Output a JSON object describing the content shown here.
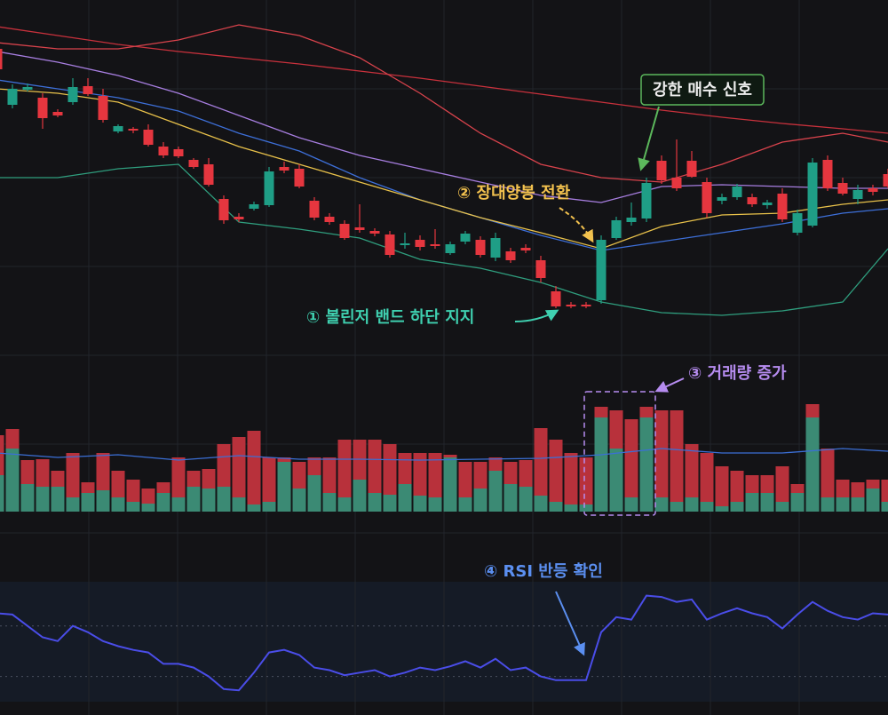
{
  "chart_data": [
    {
      "type": "candlestick",
      "xlim": [
        0,
        59
      ],
      "ylim": [
        20,
        400
      ],
      "up_color": "#1f9e86",
      "down_color": "#e5363f",
      "open": [
        345,
        282,
        299,
        290,
        274,
        285,
        303,
        292,
        252,
        255,
        254,
        235,
        232,
        220,
        215,
        176,
        156,
        165,
        169,
        212,
        210,
        174,
        156,
        148,
        144,
        140,
        136,
        124,
        130,
        125,
        115,
        128,
        130,
        110,
        117,
        121,
        107,
        72,
        57,
        57,
        62,
        132,
        150,
        154,
        219,
        200,
        219,
        195,
        174,
        178,
        178,
        169,
        182,
        138,
        146,
        220,
        194,
        176,
        188,
        204
      ],
      "high": [
        350,
        305,
        306,
        295,
        277,
        312,
        312,
        300,
        260,
        257,
        260,
        240,
        235,
        222,
        222,
        180,
        160,
        173,
        212,
        218,
        215,
        178,
        160,
        152,
        170,
        143,
        140,
        138,
        135,
        142,
        128,
        140,
        134,
        138,
        121,
        125,
        112,
        78,
        60,
        60,
        135,
        156,
        172,
        200,
        225,
        243,
        230,
        200,
        182,
        193,
        182,
        175,
        188,
        164,
        222,
        225,
        200,
        192,
        192,
        210
      ],
      "low": [
        320,
        278,
        297,
        255,
        268,
        282,
        292,
        262,
        250,
        250,
        235,
        222,
        222,
        210,
        190,
        148,
        150,
        163,
        167,
        205,
        188,
        152,
        147,
        130,
        138,
        134,
        110,
        120,
        118,
        120,
        113,
        125,
        110,
        106,
        104,
        115,
        82,
        53,
        53,
        53,
        58,
        130,
        146,
        150,
        193,
        185,
        200,
        155,
        170,
        175,
        167,
        165,
        150,
        135,
        144,
        185,
        180,
        170,
        180,
        188
      ],
      "close": [
        322,
        300,
        302,
        267,
        270,
        302,
        294,
        265,
        258,
        253,
        237,
        225,
        224,
        212,
        192,
        152,
        153,
        170,
        207,
        208,
        190,
        155,
        150,
        132,
        141,
        137,
        113,
        126,
        122,
        123,
        125,
        137,
        113,
        132,
        107,
        118,
        87,
        55,
        55,
        55,
        130,
        152,
        155,
        194,
        197,
        188,
        201,
        160,
        178,
        190,
        170,
        172,
        153,
        160,
        217,
        188,
        182,
        186,
        184,
        190
      ],
      "overlays": [
        {
          "color": "#c8313c",
          "x": [
            0,
            4,
            8,
            12,
            16,
            20,
            24,
            28,
            32,
            36,
            40,
            44,
            48,
            52,
            56,
            59
          ],
          "values": [
            370,
            360,
            350,
            342,
            335,
            328,
            320,
            312,
            303,
            294,
            285,
            276,
            268,
            261,
            255,
            250
          ]
        },
        {
          "color": "#d9434c",
          "x": [
            0,
            4,
            8,
            12,
            16,
            20,
            24,
            28,
            32,
            36,
            40,
            44,
            48,
            52,
            56,
            59
          ],
          "values": [
            352,
            345,
            345,
            355,
            372,
            360,
            335,
            295,
            250,
            215,
            200,
            195,
            215,
            240,
            250,
            240
          ]
        },
        {
          "color": "#a77ee0",
          "x": [
            0,
            4,
            8,
            12,
            16,
            20,
            24,
            28,
            32,
            36,
            40,
            44,
            48,
            52,
            56,
            59
          ],
          "values": [
            342,
            330,
            315,
            295,
            270,
            245,
            225,
            210,
            195,
            180,
            172,
            190,
            192,
            190,
            188,
            188
          ]
        },
        {
          "color": "#3d6fd8",
          "x": [
            0,
            4,
            8,
            12,
            16,
            20,
            24,
            28,
            32,
            36,
            40,
            44,
            48,
            52,
            56,
            59
          ],
          "values": [
            310,
            300,
            290,
            275,
            250,
            230,
            200,
            175,
            155,
            135,
            118,
            128,
            138,
            148,
            160,
            165
          ]
        },
        {
          "color": "#e8c14a",
          "x": [
            0,
            4,
            8,
            12,
            16,
            20,
            24,
            28,
            32,
            36,
            40,
            44,
            48,
            52,
            56,
            59
          ],
          "values": [
            300,
            295,
            285,
            260,
            235,
            215,
            195,
            175,
            155,
            138,
            120,
            145,
            158,
            160,
            170,
            175
          ]
        },
        {
          "color": "#2f9e7e",
          "x": [
            0,
            4,
            8,
            12,
            16,
            20,
            24,
            28,
            32,
            36,
            40,
            44,
            48,
            52,
            56,
            59
          ],
          "values": [
            200,
            200,
            210,
            215,
            150,
            142,
            132,
            108,
            98,
            82,
            60,
            48,
            45,
            50,
            60,
            120
          ]
        }
      ],
      "annotations": [
        "강한 매수 신호",
        "② 장대양봉 전환",
        "① 볼린저 밴드 하단 지지"
      ]
    },
    {
      "type": "bar",
      "stacked": true,
      "xlim": [
        0,
        59
      ],
      "ylim": [
        0,
        130
      ],
      "series": [
        {
          "color": "#3b8a74",
          "values": [
            41,
            71,
            31,
            28,
            28,
            16,
            21,
            24,
            16,
            11,
            9,
            21,
            16,
            28,
            26,
            28,
            16,
            8,
            11,
            56,
            26,
            41,
            21,
            16,
            36,
            21,
            19,
            31,
            18,
            16,
            61,
            16,
            26,
            46,
            31,
            28,
            18,
            11,
            8,
            8,
            106,
            71,
            16,
            106,
            16,
            11,
            16,
            11,
            6,
            11,
            21,
            21,
            11,
            21,
            106,
            16,
            16,
            16,
            26,
            11
          ]
        },
        {
          "color": "#b8313b",
          "values": [
            45,
            22,
            27,
            31,
            18,
            50,
            12,
            42,
            30,
            25,
            17,
            12,
            45,
            18,
            22,
            48,
            68,
            83,
            50,
            5,
            30,
            20,
            40,
            65,
            45,
            60,
            57,
            35,
            48,
            50,
            3,
            40,
            30,
            15,
            25,
            30,
            76,
            70,
            58,
            53,
            12,
            43,
            88,
            12,
            98,
            103,
            60,
            55,
            45,
            35,
            20,
            20,
            40,
            10,
            15,
            55,
            20,
            17,
            10,
            25
          ]
        }
      ],
      "overlays": [
        {
          "color": "#3b6fd6",
          "x": [
            0,
            4,
            8,
            12,
            16,
            20,
            24,
            28,
            32,
            36,
            40,
            44,
            48,
            52,
            56,
            59
          ],
          "values": [
            66,
            61,
            64,
            58,
            63,
            59,
            59,
            58,
            59,
            60,
            64,
            71,
            66,
            66,
            71,
            68
          ]
        }
      ],
      "annotations": [
        "③ 거래량 증가"
      ]
    },
    {
      "type": "line",
      "xlim": [
        0,
        59
      ],
      "ylim": [
        10,
        105
      ],
      "levels": [
        70,
        30
      ],
      "series": [
        {
          "color": "#4a4de8",
          "values": [
            80,
            79,
            70,
            61,
            58,
            70,
            65,
            58,
            54,
            51,
            49,
            40,
            40,
            37,
            30,
            20,
            19,
            33,
            49,
            51,
            47,
            37,
            35,
            31,
            33,
            35,
            30,
            33,
            37,
            35,
            38,
            42,
            37,
            44,
            35,
            37,
            30,
            27,
            27,
            27,
            65,
            77,
            75,
            94,
            93,
            89,
            91,
            75,
            80,
            84,
            80,
            77,
            68,
            79,
            89,
            82,
            77,
            75,
            80,
            79
          ]
        }
      ],
      "annotations": [
        "④ RSI 반등 확인"
      ]
    }
  ]
}
